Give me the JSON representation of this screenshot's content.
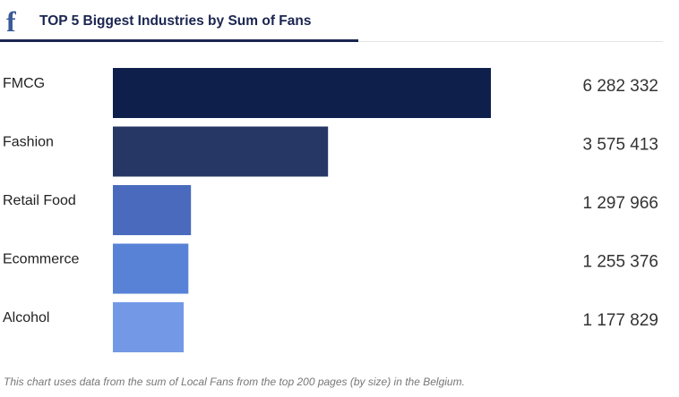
{
  "header": {
    "title": "TOP 5 Biggest Industries by Sum of Fans",
    "logo_icon": "facebook-icon",
    "logo_glyph": "f"
  },
  "chart_data": {
    "type": "bar",
    "orientation": "horizontal",
    "categories": [
      "FMCG",
      "Fashion",
      "Retail Food",
      "Ecommerce",
      "Alcohol"
    ],
    "values": [
      6282332,
      3575413,
      1297966,
      1255376,
      1177829
    ],
    "value_labels": [
      "6 282 332",
      "3 575 413",
      "1 297 966",
      "1 255 376",
      "1 177 829"
    ],
    "colors": [
      "#0f1f4b",
      "#263765",
      "#4a6bbd",
      "#5882d6",
      "#7399e6"
    ],
    "title": "TOP 5 Biggest Industries by Sum of Fans",
    "xlim": [
      0,
      6282332
    ],
    "grid": false,
    "legend": "none"
  },
  "footnote": "This chart uses data from the sum of Local Fans from the top 200 pages (by size) in the Belgium."
}
